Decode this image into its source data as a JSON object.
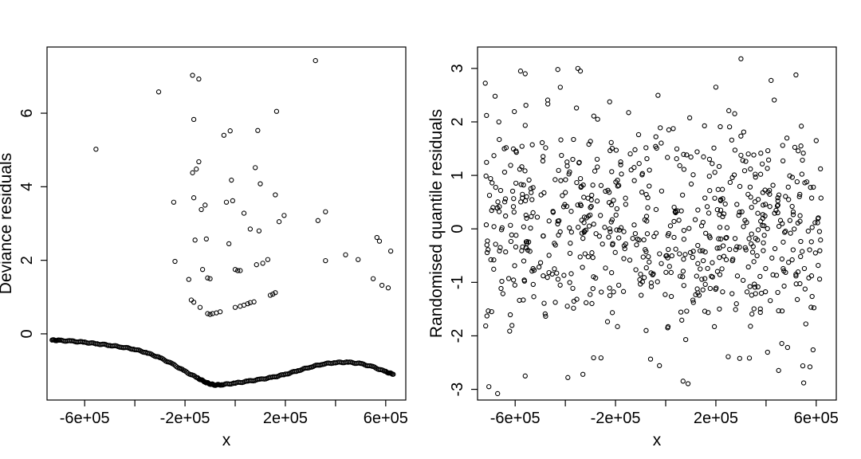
{
  "chart_data": [
    {
      "type": "scatter",
      "xlabel": "x",
      "ylabel": "Deviance residuals",
      "xlim": [
        -750000,
        680000
      ],
      "ylim": [
        -1.8,
        7.8
      ],
      "xticks": [
        -600000,
        -400000,
        -200000,
        0,
        200000,
        400000,
        600000
      ],
      "xtick_labels": [
        "-6e+05",
        "",
        "-2e+05",
        "",
        "2e+05",
        "",
        "6e+05"
      ],
      "yticks": [
        0,
        2,
        4,
        6
      ],
      "ytick_labels": [
        "0",
        "2",
        "4",
        "6"
      ],
      "grid": false,
      "points": [
        [
          -555000,
          5.02
        ],
        [
          -305000,
          6.58
        ],
        [
          -245000,
          3.58
        ],
        [
          -240000,
          1.97
        ],
        [
          -185000,
          1.48
        ],
        [
          -175000,
          0.92
        ],
        [
          -165000,
          0.86
        ],
        [
          -170000,
          7.03
        ],
        [
          -165000,
          5.83
        ],
        [
          -170000,
          4.38
        ],
        [
          -155000,
          4.48
        ],
        [
          -145000,
          4.68
        ],
        [
          -165000,
          3.7
        ],
        [
          -160000,
          2.55
        ],
        [
          -140000,
          0.72
        ],
        [
          -145000,
          6.93
        ],
        [
          -135000,
          3.38
        ],
        [
          -120000,
          3.5
        ],
        [
          -130000,
          1.75
        ],
        [
          -115000,
          2.58
        ],
        [
          -110000,
          1.52
        ],
        [
          -100000,
          1.5
        ],
        [
          -110000,
          0.55
        ],
        [
          -100000,
          0.53
        ],
        [
          -90000,
          0.55
        ],
        [
          -60000,
          0.6
        ],
        [
          -75000,
          0.57
        ],
        [
          -45000,
          5.4
        ],
        [
          -35000,
          3.58
        ],
        [
          -20000,
          5.52
        ],
        [
          -15000,
          4.18
        ],
        [
          -10000,
          3.62
        ],
        [
          -25000,
          2.45
        ],
        [
          0,
          1.75
        ],
        [
          20000,
          1.72
        ],
        [
          10000,
          1.72
        ],
        [
          35000,
          3.28
        ],
        [
          60000,
          2.85
        ],
        [
          80000,
          4.52
        ],
        [
          90000,
          5.53
        ],
        [
          100000,
          4.08
        ],
        [
          95000,
          2.8
        ],
        [
          85000,
          1.88
        ],
        [
          110000,
          1.92
        ],
        [
          130000,
          2.02
        ],
        [
          0,
          0.72
        ],
        [
          20000,
          0.75
        ],
        [
          35000,
          0.78
        ],
        [
          50000,
          0.82
        ],
        [
          60000,
          0.85
        ],
        [
          75000,
          0.87
        ],
        [
          140000,
          1.05
        ],
        [
          150000,
          1.08
        ],
        [
          160000,
          1.12
        ],
        [
          175000,
          3.05
        ],
        [
          160000,
          3.78
        ],
        [
          165000,
          6.05
        ],
        [
          195000,
          3.22
        ],
        [
          320000,
          7.43
        ],
        [
          330000,
          3.08
        ],
        [
          360000,
          3.32
        ],
        [
          360000,
          1.99
        ],
        [
          440000,
          2.15
        ],
        [
          490000,
          2.02
        ],
        [
          550000,
          1.5
        ],
        [
          565000,
          2.62
        ],
        [
          575000,
          2.52
        ],
        [
          585000,
          1.32
        ],
        [
          610000,
          1.25
        ],
        [
          620000,
          2.25
        ]
      ],
      "curve": [
        [
          -730000,
          -0.17
        ],
        [
          -700000,
          -0.18
        ],
        [
          -650000,
          -0.2
        ],
        [
          -600000,
          -0.23
        ],
        [
          -550000,
          -0.27
        ],
        [
          -500000,
          -0.31
        ],
        [
          -450000,
          -0.36
        ],
        [
          -400000,
          -0.42
        ],
        [
          -350000,
          -0.52
        ],
        [
          -300000,
          -0.65
        ],
        [
          -250000,
          -0.82
        ],
        [
          -200000,
          -1.02
        ],
        [
          -150000,
          -1.2
        ],
        [
          -120000,
          -1.31
        ],
        [
          -100000,
          -1.36
        ],
        [
          -80000,
          -1.39
        ],
        [
          -50000,
          -1.38
        ],
        [
          0,
          -1.34
        ],
        [
          50000,
          -1.29
        ],
        [
          100000,
          -1.24
        ],
        [
          150000,
          -1.18
        ],
        [
          200000,
          -1.1
        ],
        [
          250000,
          -1.0
        ],
        [
          300000,
          -0.9
        ],
        [
          350000,
          -0.82
        ],
        [
          400000,
          -0.78
        ],
        [
          450000,
          -0.77
        ],
        [
          500000,
          -0.81
        ],
        [
          550000,
          -0.9
        ],
        [
          600000,
          -1.03
        ],
        [
          630000,
          -1.1
        ]
      ]
    },
    {
      "type": "scatter",
      "xlabel": "x",
      "ylabel": "Randomised quantile residuals",
      "xlim": [
        -750000,
        680000
      ],
      "ylim": [
        -3.2,
        3.4
      ],
      "xticks": [
        -600000,
        -400000,
        -200000,
        0,
        200000,
        400000,
        600000
      ],
      "xtick_labels": [
        "-6e+05",
        "",
        "-2e+05",
        "",
        "2e+05",
        "",
        "6e+05"
      ],
      "yticks": [
        -3,
        -2,
        -1,
        0,
        1,
        2,
        3
      ],
      "ytick_labels": [
        "-3",
        "-2",
        "-1",
        "0",
        "1",
        "2",
        "3"
      ],
      "grid": false,
      "n_points": 700,
      "approx_spread_sd": 1.0,
      "highlight_points": [
        [
          -670000,
          -3.08
        ],
        [
          -680000,
          2.48
        ],
        [
          -665000,
          2.0
        ],
        [
          -560000,
          2.9
        ],
        [
          -560000,
          -2.75
        ],
        [
          -430000,
          2.98
        ],
        [
          -350000,
          3.0
        ],
        [
          -340000,
          2.95
        ],
        [
          -390000,
          -2.78
        ],
        [
          -330000,
          -2.72
        ],
        [
          300000,
          3.18
        ],
        [
          200000,
          2.65
        ],
        [
          550000,
          -2.88
        ],
        [
          575000,
          -2.58
        ],
        [
          600000,
          1.65
        ]
      ]
    }
  ]
}
